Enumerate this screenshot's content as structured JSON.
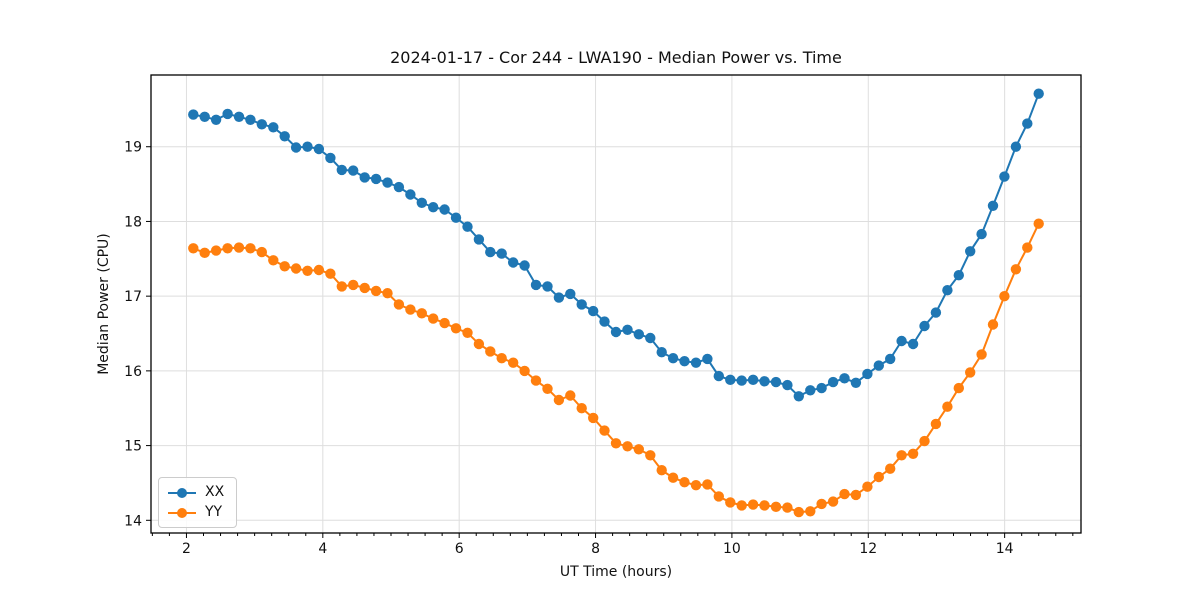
{
  "chart_data": {
    "type": "line",
    "title": "2024-01-17 - Cor 244 - LWA190 - Median Power vs. Time",
    "xlabel": "UT Time (hours)",
    "ylabel": "Median Power (CPU)",
    "xlim": [
      1.48,
      15.12
    ],
    "ylim": [
      13.83,
      19.96
    ],
    "xticks": [
      2,
      4,
      6,
      8,
      10,
      12,
      14
    ],
    "yticks": [
      14,
      15,
      16,
      17,
      18,
      19
    ],
    "x_minor_step": 0.25,
    "grid": true,
    "grid_color": "#dedede",
    "legend_position": "lower left",
    "x": [
      2.1,
      2.268,
      2.435,
      2.603,
      2.77,
      2.938,
      3.105,
      3.273,
      3.441,
      3.608,
      3.776,
      3.943,
      4.111,
      4.278,
      4.446,
      4.614,
      4.781,
      4.949,
      5.116,
      5.284,
      5.451,
      5.619,
      5.786,
      5.954,
      6.122,
      6.289,
      6.457,
      6.624,
      6.792,
      6.959,
      7.127,
      7.295,
      7.462,
      7.63,
      7.797,
      7.965,
      8.132,
      8.3,
      8.468,
      8.635,
      8.803,
      8.97,
      9.138,
      9.305,
      9.473,
      9.641,
      9.808,
      9.976,
      10.143,
      10.311,
      10.478,
      10.646,
      10.814,
      10.981,
      11.149,
      11.316,
      11.484,
      11.651,
      11.819,
      11.987,
      12.154,
      12.322,
      12.489,
      12.657,
      12.824,
      12.992,
      13.16,
      13.327,
      13.495,
      13.662,
      13.83,
      13.997,
      14.165,
      14.332,
      14.5
    ],
    "series": [
      {
        "name": "XX",
        "color": "#1f77b4",
        "values": [
          19.43,
          19.4,
          19.36,
          19.44,
          19.4,
          19.36,
          19.3,
          19.26,
          19.14,
          18.99,
          19.0,
          18.97,
          18.85,
          18.69,
          18.68,
          18.59,
          18.57,
          18.52,
          18.46,
          18.36,
          18.25,
          18.19,
          18.16,
          18.05,
          17.93,
          17.76,
          17.59,
          17.57,
          17.45,
          17.41,
          17.15,
          17.13,
          16.98,
          17.03,
          16.89,
          16.8,
          16.66,
          16.52,
          16.55,
          16.49,
          16.44,
          16.25,
          16.17,
          16.13,
          16.11,
          16.16,
          15.93,
          15.88,
          15.87,
          15.88,
          15.86,
          15.85,
          15.81,
          15.66,
          15.74,
          15.77,
          15.85,
          15.9,
          15.84,
          15.96,
          16.07,
          16.16,
          16.4,
          16.36,
          16.6,
          16.78,
          17.08,
          17.28,
          17.6,
          17.83,
          18.21,
          18.6,
          19.0,
          19.31,
          19.71
        ]
      },
      {
        "name": "YY",
        "color": "#ff7f0e",
        "values": [
          17.64,
          17.58,
          17.61,
          17.64,
          17.65,
          17.64,
          17.59,
          17.48,
          17.4,
          17.37,
          17.34,
          17.35,
          17.3,
          17.13,
          17.15,
          17.11,
          17.07,
          17.04,
          16.89,
          16.82,
          16.77,
          16.7,
          16.64,
          16.57,
          16.51,
          16.36,
          16.26,
          16.17,
          16.11,
          16.0,
          15.87,
          15.76,
          15.61,
          15.67,
          15.5,
          15.37,
          15.2,
          15.03,
          14.99,
          14.95,
          14.87,
          14.67,
          14.57,
          14.51,
          14.47,
          14.48,
          14.32,
          14.24,
          14.2,
          14.21,
          14.2,
          14.18,
          14.17,
          14.11,
          14.12,
          14.22,
          14.25,
          14.35,
          14.34,
          14.45,
          14.58,
          14.69,
          14.87,
          14.89,
          15.06,
          15.29,
          15.52,
          15.77,
          15.98,
          16.22,
          16.62,
          17.0,
          17.36,
          17.65,
          17.97
        ]
      }
    ]
  }
}
